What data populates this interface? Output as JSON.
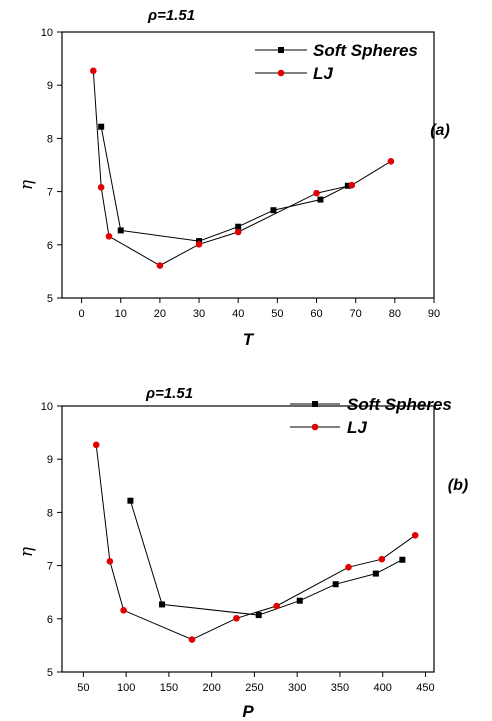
{
  "chart_data": [
    {
      "type": "line",
      "panel_label": "(a)",
      "title": "ρ=1.51",
      "xlabel": "T",
      "ylabel": "η",
      "xlim": [
        -5,
        90
      ],
      "ylim": [
        5,
        10
      ],
      "xticks": [
        0,
        10,
        20,
        30,
        40,
        50,
        60,
        70,
        80,
        90
      ],
      "yticks": [
        5,
        6,
        7,
        8,
        9,
        10
      ],
      "legend_position": "top-right",
      "series": [
        {
          "name": "Soft Spheres",
          "marker": "square",
          "color": "#000000",
          "x": [
            5,
            10,
            30,
            40,
            49,
            61,
            68
          ],
          "y": [
            8.22,
            6.27,
            6.07,
            6.34,
            6.65,
            6.85,
            7.11
          ]
        },
        {
          "name": "LJ",
          "marker": "circle",
          "color": "#e00000",
          "x": [
            3,
            5,
            7,
            20,
            30,
            40,
            60,
            69,
            79
          ],
          "y": [
            9.27,
            7.08,
            6.16,
            5.61,
            6.01,
            6.24,
            6.97,
            7.12,
            7.57
          ]
        }
      ]
    },
    {
      "type": "line",
      "panel_label": "(b)",
      "title": "ρ=1.51",
      "xlabel": "P",
      "ylabel": "η",
      "xlim": [
        25,
        460
      ],
      "ylim": [
        5,
        10
      ],
      "xticks": [
        50,
        100,
        150,
        200,
        250,
        300,
        350,
        400,
        450
      ],
      "yticks": [
        5,
        6,
        7,
        8,
        9,
        10
      ],
      "legend_position": "top-right",
      "series": [
        {
          "name": "Soft Spheres",
          "marker": "square",
          "color": "#000000",
          "x": [
            105,
            142,
            255,
            303,
            345,
            392,
            423
          ],
          "y": [
            8.22,
            6.27,
            6.07,
            6.34,
            6.65,
            6.85,
            7.11
          ]
        },
        {
          "name": "LJ",
          "marker": "circle",
          "color": "#e00000",
          "x": [
            65,
            81,
            97,
            177,
            229,
            276,
            360,
            399,
            438
          ],
          "y": [
            9.27,
            7.08,
            6.16,
            5.61,
            6.01,
            6.24,
            6.97,
            7.12,
            7.57
          ]
        }
      ]
    }
  ]
}
